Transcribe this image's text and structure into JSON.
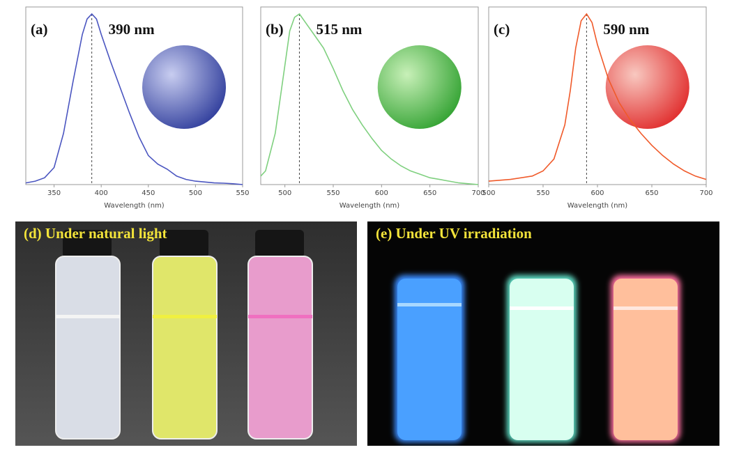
{
  "chart_data": [
    {
      "type": "line",
      "panel_label": "(a)",
      "peak": {
        "value": 390,
        "label": "390 nm"
      },
      "x_label": "Wavelength (nm)",
      "color": "#4a55c0",
      "x": [
        320,
        330,
        340,
        350,
        360,
        370,
        380,
        385,
        390,
        395,
        400,
        410,
        420,
        430,
        440,
        450,
        460,
        470,
        480,
        490,
        500,
        510,
        520,
        530,
        540,
        550
      ],
      "values": [
        0.01,
        0.02,
        0.04,
        0.1,
        0.3,
        0.6,
        0.88,
        0.97,
        1.0,
        0.97,
        0.88,
        0.72,
        0.57,
        0.42,
        0.28,
        0.17,
        0.12,
        0.09,
        0.05,
        0.03,
        0.02,
        0.015,
        0.01,
        0.008,
        0.005,
        0.0
      ],
      "xlim": [
        320,
        550
      ],
      "xticks": [
        350,
        400,
        450,
        500,
        550
      ],
      "ylim": [
        0,
        1
      ]
    },
    {
      "type": "line",
      "panel_label": "(b)",
      "peak": {
        "value": 515,
        "label": "515 nm"
      },
      "x_label": "Wavelength (nm)",
      "color": "#7fd07f",
      "x": [
        475,
        480,
        490,
        500,
        505,
        510,
        515,
        520,
        530,
        540,
        550,
        560,
        570,
        580,
        590,
        600,
        610,
        620,
        630,
        640,
        650,
        660,
        670,
        680,
        690,
        700
      ],
      "values": [
        0.05,
        0.08,
        0.3,
        0.7,
        0.9,
        0.98,
        1.0,
        0.96,
        0.88,
        0.8,
        0.68,
        0.55,
        0.44,
        0.35,
        0.27,
        0.2,
        0.15,
        0.11,
        0.08,
        0.06,
        0.04,
        0.03,
        0.02,
        0.01,
        0.005,
        0.0
      ],
      "xlim": [
        475,
        700
      ],
      "xticks": [
        500,
        550,
        600,
        650,
        700
      ],
      "ylim": [
        0,
        1
      ]
    },
    {
      "type": "line",
      "panel_label": "(c)",
      "peak": {
        "value": 590,
        "label": "590 nm"
      },
      "x_label": "Wavelength (nm)",
      "color": "#f05a2a",
      "x": [
        500,
        520,
        540,
        550,
        560,
        570,
        575,
        580,
        585,
        590,
        595,
        600,
        610,
        620,
        630,
        640,
        650,
        660,
        670,
        680,
        690,
        700
      ],
      "values": [
        0.02,
        0.03,
        0.05,
        0.08,
        0.15,
        0.35,
        0.55,
        0.8,
        0.96,
        1.0,
        0.95,
        0.82,
        0.62,
        0.48,
        0.38,
        0.3,
        0.23,
        0.17,
        0.12,
        0.08,
        0.05,
        0.03
      ],
      "xlim": [
        500,
        700
      ],
      "xticks": [
        500,
        550,
        600,
        650,
        700
      ],
      "ylim": [
        0,
        1
      ]
    }
  ],
  "photos": [
    {
      "label": "(d) Under natural light"
    },
    {
      "label": "(e) Under UV irradiation"
    }
  ]
}
